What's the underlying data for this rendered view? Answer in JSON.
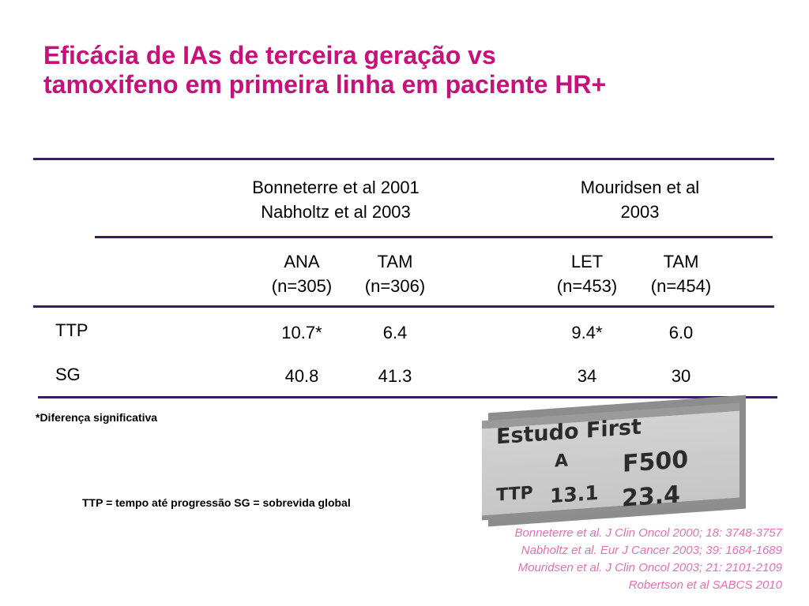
{
  "slide": {
    "title_line1": "Eficácia de IAs de terceira geração vs",
    "title_line2": "tamoxifeno em primeira linha em paciente HR+",
    "title_color": "#c8107a",
    "rule_color": "#3a1d5c"
  },
  "table": {
    "study_headers": [
      {
        "line1": "Bonneterre et al 2001",
        "line2": "Nabholtz et al 2003"
      },
      {
        "line1": "Mouridsen et al",
        "line2": "2003"
      }
    ],
    "arm_headers": [
      {
        "line1": "ANA",
        "line2": "(n=305)"
      },
      {
        "line1": "TAM",
        "line2": "(n=306)"
      },
      {
        "line1": "LET",
        "line2": "(n=453)"
      },
      {
        "line1": "TAM",
        "line2": "(n=454)"
      }
    ],
    "rows": [
      {
        "label": "TTP",
        "values": [
          "10.7*",
          "6.4",
          "9.4*",
          "6.0"
        ]
      },
      {
        "label": "SG",
        "values": [
          "40.8",
          "41.3",
          "34",
          "30"
        ]
      }
    ]
  },
  "footnote": "*Diferença significativa",
  "abbreviations": "TTP = tempo até progressão SG = sobrevida global",
  "first_box": {
    "title": "Estudo First",
    "col_a": "A",
    "col_f500": "F500",
    "row_label": "TTP",
    "value_a": "13.1",
    "value_f500": "23.4"
  },
  "references": [
    "Bonneterre et al. J Clin Oncol 2000; 18: 3748-3757",
    "Nabholtz et al. Eur J Cancer 2003; 39: 1684-1689",
    "Mouridsen et al. J Clin Oncol 2003; 21: 2101-2109",
    "Robertson et al SABCS 2010"
  ],
  "reference_color": "#e86fb4"
}
